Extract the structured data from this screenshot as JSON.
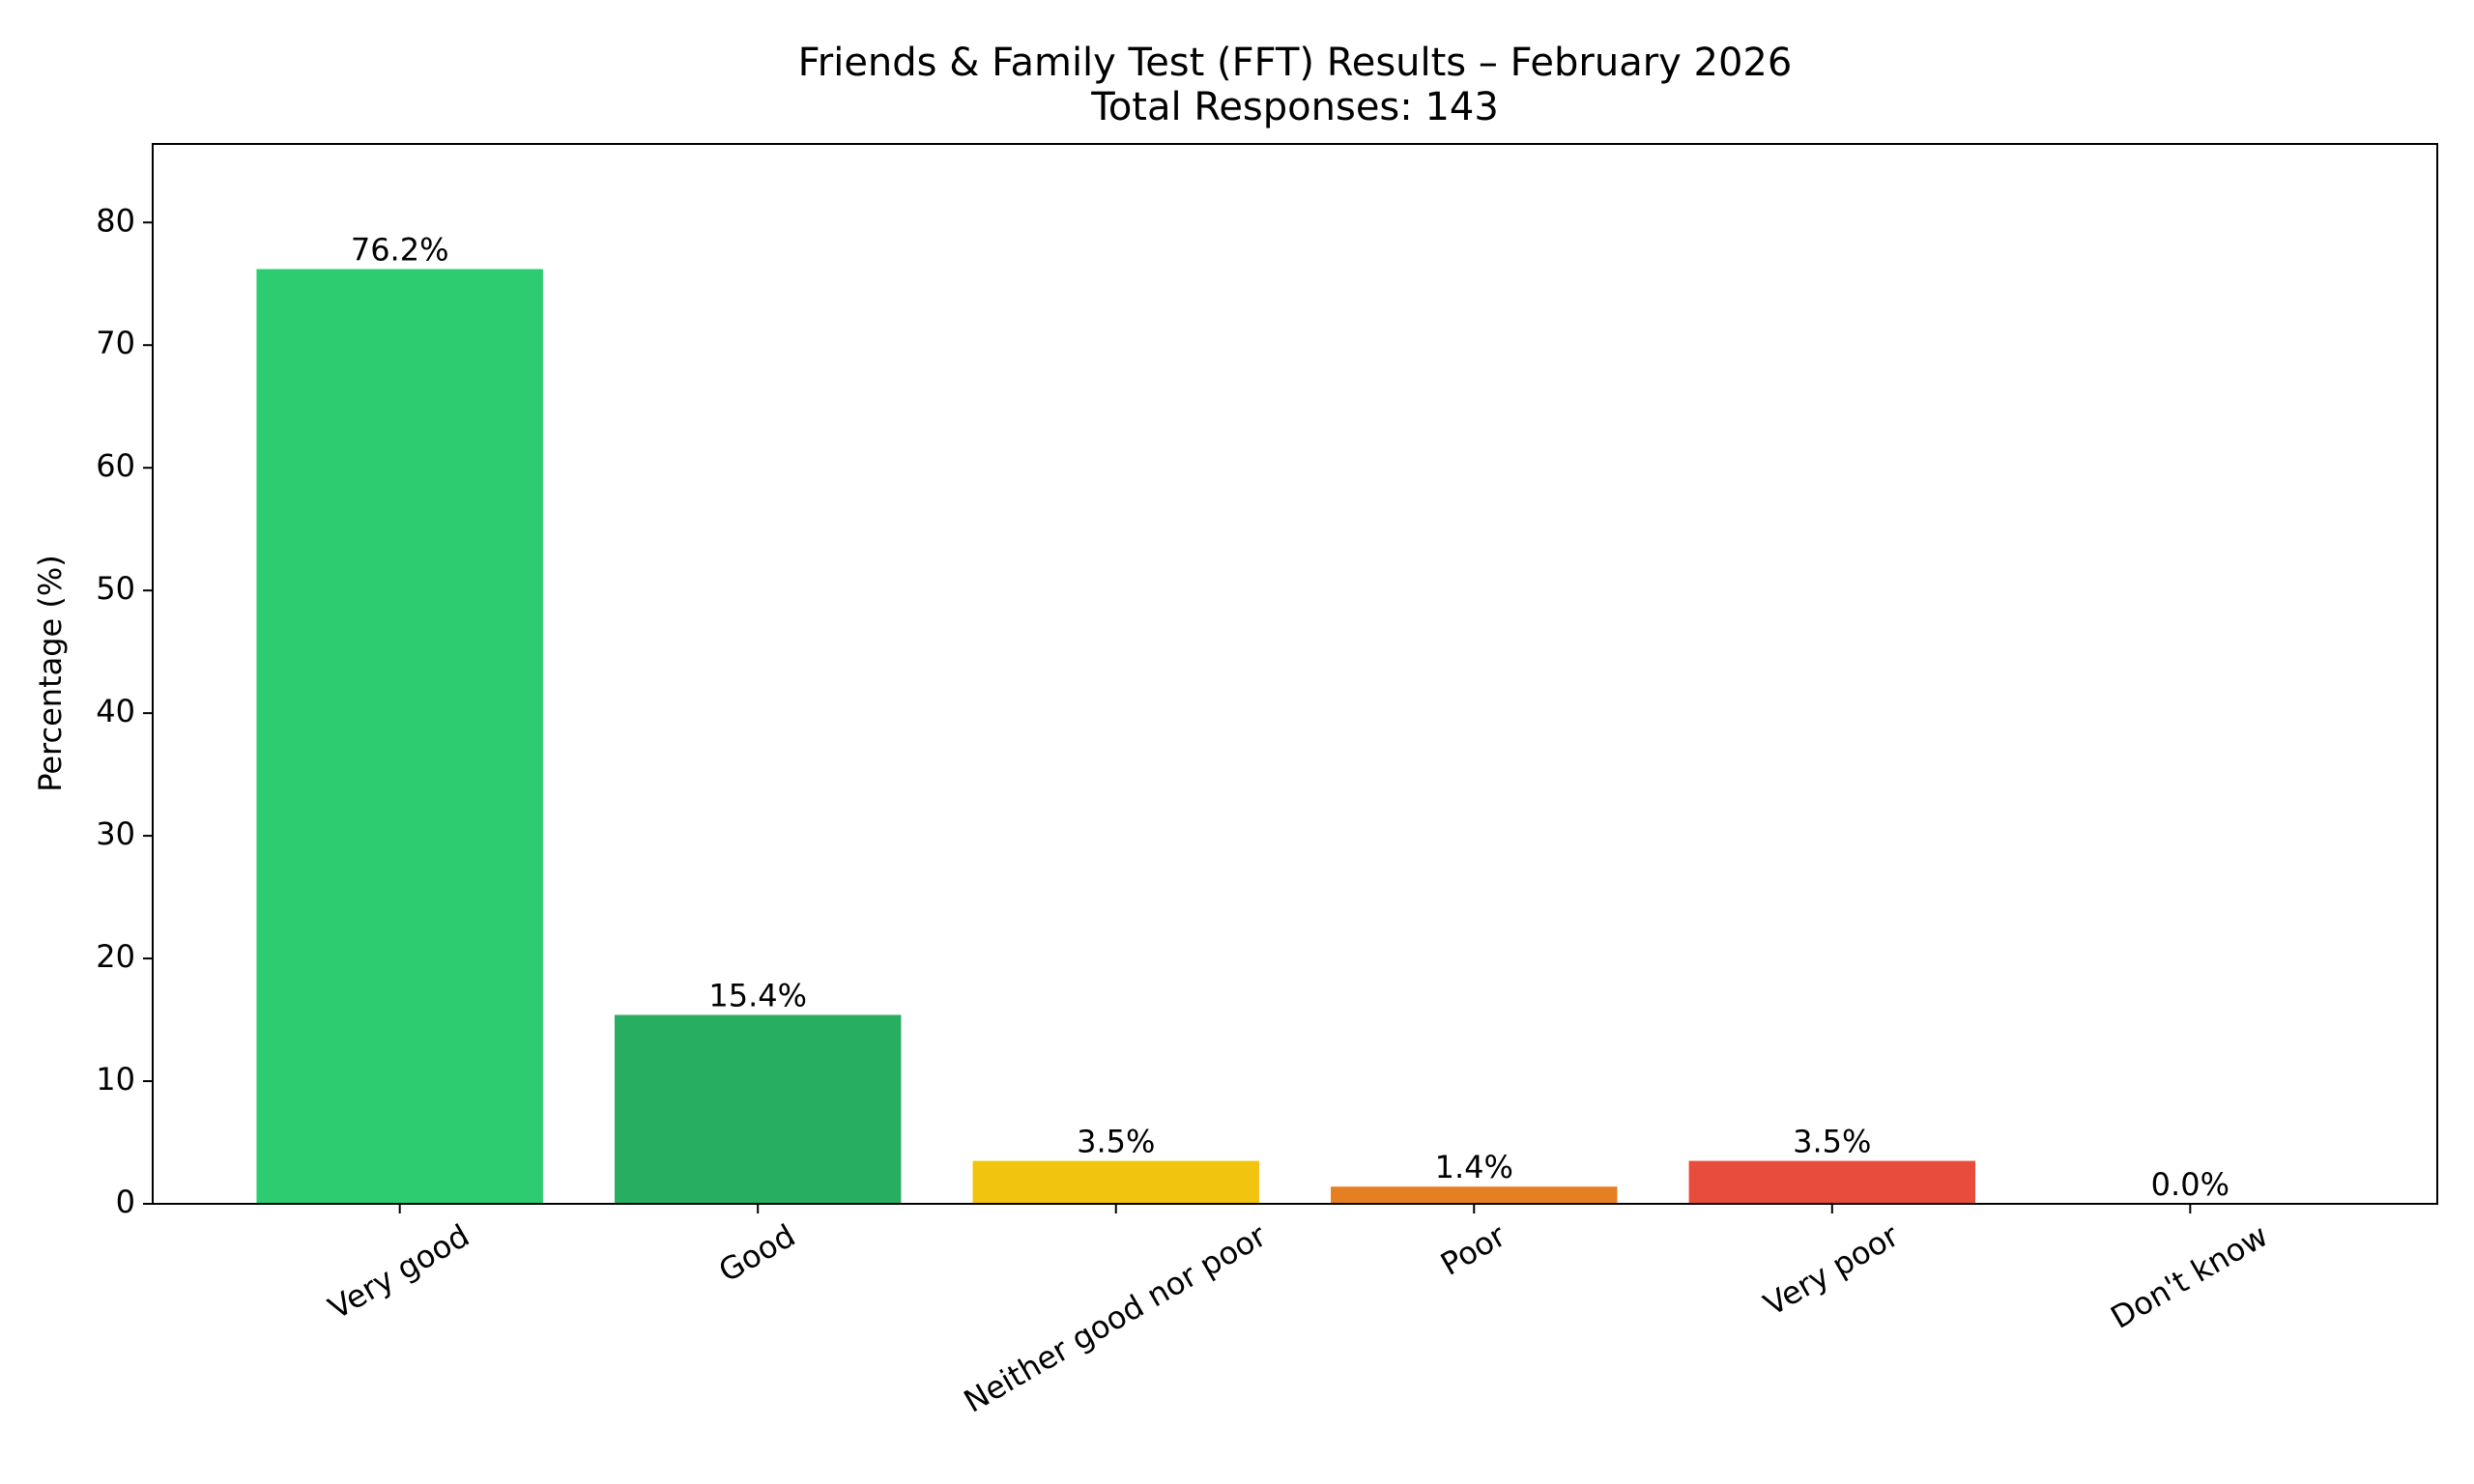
{
  "chart_data": {
    "type": "bar",
    "title": "Friends & Family Test (FFT) Results – February 2026",
    "subtitle": "Total Responses: 143",
    "y_label": "Percentage (%)",
    "categories": [
      "Very good",
      "Good",
      "Neither good nor poor",
      "Poor",
      "Very poor",
      "Don't know"
    ],
    "values": [
      76.2,
      15.4,
      3.5,
      1.4,
      3.5,
      0.0
    ],
    "value_labels": [
      "76.2%",
      "15.4%",
      "3.5%",
      "1.4%",
      "3.5%",
      "0.0%"
    ],
    "colors": [
      "#2ecc71",
      "#27ae60",
      "#f1c40f",
      "#e67e22",
      "#e74c3c",
      "#95a5a6"
    ],
    "ylim": [
      0,
      86.4
    ],
    "yticks": [
      0,
      10,
      20,
      30,
      40,
      50,
      60,
      70,
      80
    ],
    "grid": false
  }
}
